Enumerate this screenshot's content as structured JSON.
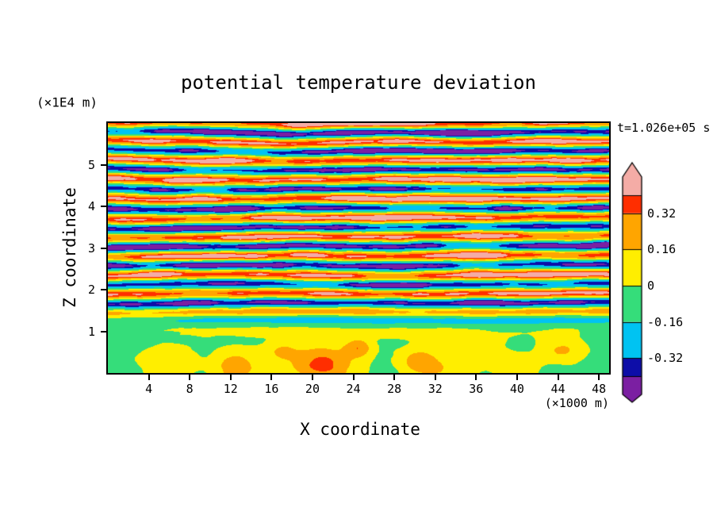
{
  "chart_data": {
    "type": "heatmap",
    "title": "potential temperature deviation",
    "timestamp_label": "t=1.026e+05 s",
    "xlabel": "X coordinate",
    "x_unit_label": "(×1000 m)",
    "ylabel": "Z coordinate",
    "y_unit_label": "(×1E4 m)",
    "x_range": [
      0,
      49
    ],
    "x_ticks": [
      4,
      8,
      12,
      16,
      20,
      24,
      28,
      32,
      36,
      40,
      44,
      48
    ],
    "z_range": [
      0,
      6
    ],
    "z_ticks": [
      1,
      2,
      3,
      4,
      5
    ],
    "contour_bin_edges": [
      -0.48,
      -0.4,
      -0.32,
      -0.16,
      0,
      0.16,
      0.32,
      0.4,
      0.48
    ],
    "bin_colors": [
      "#7B1FA2",
      "#0D0DA8",
      "#00C3F2",
      "#35DD7A",
      "#FFEE00",
      "#FFA500",
      "#FF2E00",
      "#F4ACA6"
    ],
    "colorbar_ticks": [
      {
        "value": 0.32,
        "label": "0.32"
      },
      {
        "value": 0.16,
        "label": "0.16"
      },
      {
        "value": 0,
        "label": "0"
      },
      {
        "value": -0.16,
        "label": "-0.16"
      },
      {
        "value": -0.32,
        "label": "-0.32"
      }
    ],
    "description": "Vertical cross-section of potential temperature deviation at t=1.026e+05 s. Horizontally layered turbulent bands of alternating positive (pink/red/orange) and negative (purple/navy/cyan) anomaly fill the region above z≈1.5 (×1E4 m); below z≈1 the field is near zero and slightly negative (green) with warm plumes (yellow/orange/red) near the surface. Exact gridded field values are not readable from the figure; the rendering is a procedural approximation driven by the parameters below.",
    "generation": {
      "seed": 7,
      "band_freq": 2.2,
      "band_warp": 0.22,
      "warp_scale_x": 0.05,
      "warp_scale_z": 0.5,
      "band_amp": 0.52,
      "amp_mod_base": 0.62,
      "amp_mod_range": 0.38,
      "amp_mod_sx": 0.07,
      "amp_mod_sz": 0.7,
      "noise2_amp": 0.2,
      "noise2_sx": 0.12,
      "noise2_sz": 1.3,
      "noise3_amp": 0.09,
      "noise3_sx": 0.35,
      "noise3_sz": 2.8,
      "mix_z0": 0.95,
      "mix_z1": 1.8,
      "bottom_mean": -0.055,
      "bottom_noise_amp": 0.05,
      "blobs": [
        [
          6,
          0.3,
          2.6,
          0.35,
          0.22
        ],
        [
          12.5,
          0.15,
          2.2,
          0.4,
          0.34
        ],
        [
          17,
          0.5,
          1.6,
          0.25,
          0.2
        ],
        [
          21,
          0.2,
          3.0,
          0.45,
          0.42
        ],
        [
          24.5,
          0.6,
          1.4,
          0.22,
          0.34
        ],
        [
          30.5,
          0.3,
          2.0,
          0.3,
          0.3
        ],
        [
          33,
          0.05,
          3.0,
          0.3,
          0.18
        ],
        [
          36,
          0.6,
          2.6,
          0.25,
          0.18
        ],
        [
          40,
          0.15,
          2.0,
          0.3,
          0.2
        ],
        [
          44.5,
          0.55,
          2.4,
          0.3,
          0.24
        ],
        [
          25,
          0.95,
          16,
          0.15,
          0.1
        ],
        [
          20,
          1.3,
          9,
          0.12,
          -0.1
        ],
        [
          38,
          1.25,
          8,
          0.12,
          -0.08
        ]
      ]
    }
  }
}
